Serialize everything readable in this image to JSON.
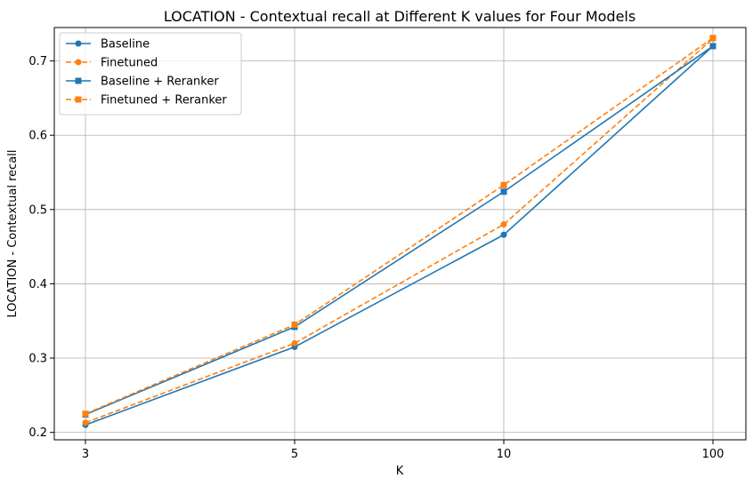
{
  "chart_data": {
    "type": "line",
    "title": "LOCATION - Contextual recall at Different K values for Four Models",
    "xlabel": "K",
    "ylabel": "LOCATION - Contextual recall",
    "categories": [
      "3",
      "5",
      "10",
      "100"
    ],
    "ylim": [
      0.19,
      0.745
    ],
    "yticks": [
      "0.2",
      "0.3",
      "0.4",
      "0.5",
      "0.6",
      "0.7"
    ],
    "grid": true,
    "legend_position": "top-left",
    "series": [
      {
        "name": "Baseline",
        "values": [
          0.21,
          0.315,
          0.466,
          0.72
        ],
        "color": "#1f77b4",
        "line_style": "solid",
        "marker": "circle"
      },
      {
        "name": "Finetuned",
        "values": [
          0.213,
          0.32,
          0.48,
          0.73
        ],
        "color": "#ff7f0e",
        "line_style": "dashed",
        "marker": "circle"
      },
      {
        "name": "Baseline + Reranker",
        "values": [
          0.224,
          0.342,
          0.524,
          0.72
        ],
        "color": "#1f77b4",
        "line_style": "solid",
        "marker": "square"
      },
      {
        "name": "Finetuned + Reranker",
        "values": [
          0.225,
          0.345,
          0.533,
          0.731
        ],
        "color": "#ff7f0e",
        "line_style": "dashed",
        "marker": "square"
      }
    ]
  }
}
